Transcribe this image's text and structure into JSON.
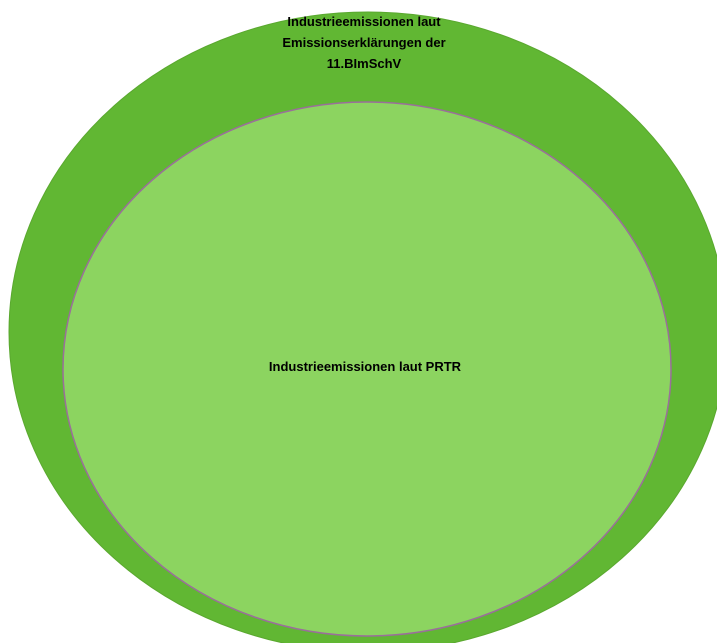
{
  "diagram": {
    "outer_set": {
      "label_lines": [
        "Industrieemissionen laut",
        "Emissionserklärungen der",
        "11.BImSchV"
      ],
      "fill_color": "#61b733",
      "stroke_color": "#5aa82f"
    },
    "inner_set": {
      "label": "Industrieemissionen laut PRTR",
      "fill_color": "#8cd460",
      "stroke_color": "#9a6f9a"
    }
  }
}
